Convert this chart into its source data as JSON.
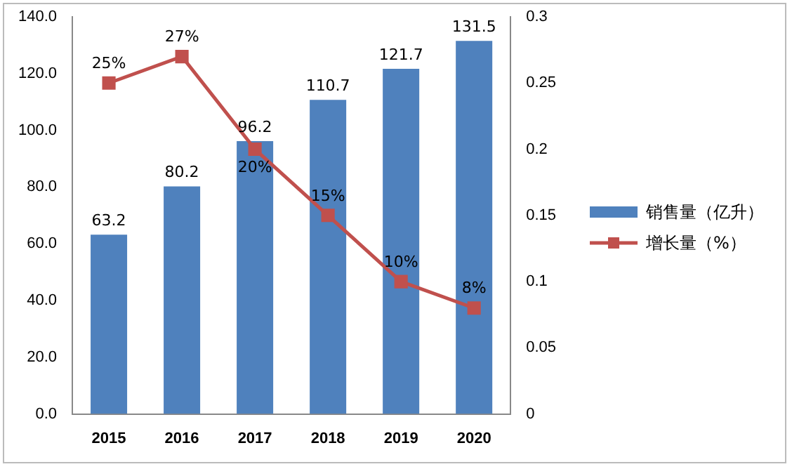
{
  "chart_data": {
    "type": "bar",
    "categories": [
      "2015",
      "2016",
      "2017",
      "2018",
      "2019",
      "2020"
    ],
    "series": [
      {
        "name": "销售量（亿升）",
        "color": "#4f81bd",
        "values": [
          63.2,
          80.2,
          96.2,
          110.7,
          121.7,
          131.5
        ],
        "value_labels": [
          "63.2",
          "80.2",
          "96.2",
          "110.7",
          "121.7",
          "131.5"
        ]
      },
      {
        "name": "增长量（%）",
        "type": "line",
        "axis": "y2",
        "color": "#c0504d",
        "values": [
          0.25,
          0.27,
          0.2,
          0.15,
          0.1,
          0.08
        ],
        "value_labels": [
          "25%",
          "27%",
          "20%",
          "15%",
          "10%",
          "8%"
        ]
      }
    ],
    "ylim": [
      0,
      140
    ],
    "yticks": [
      {
        "value": 0,
        "label": "0.0"
      },
      {
        "value": 20,
        "label": "20.0"
      },
      {
        "value": 40,
        "label": "40.0"
      },
      {
        "value": 60,
        "label": "60.0"
      },
      {
        "value": 80,
        "label": "80.0"
      },
      {
        "value": 100,
        "label": "100.0"
      },
      {
        "value": 120,
        "label": "120.0"
      },
      {
        "value": 140,
        "label": "140.0"
      }
    ],
    "y2lim": [
      0,
      0.3
    ],
    "y2ticks": [
      0,
      0.05,
      0.1,
      0.15,
      0.2,
      0.25,
      0.3
    ],
    "grid": false,
    "legend": "right",
    "marker": "square",
    "line_style": "solid"
  }
}
